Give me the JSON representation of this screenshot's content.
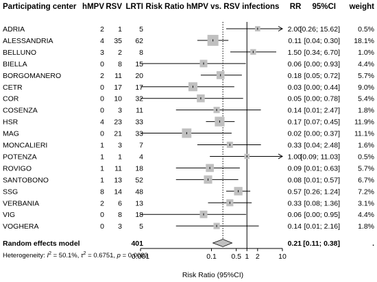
{
  "headers": {
    "center": "Participating center",
    "hmpv": "hMPV",
    "rsv": "RSV",
    "lrti": "LRTI",
    "plot": "Risk Ratio hMPV vs. RSV infections",
    "rr": "RR",
    "ci": "95%CI",
    "weight": "weight"
  },
  "rows": [
    {
      "center": "ADRIA",
      "hmpv": "2",
      "rsv": "1",
      "lrti": "5",
      "rr_text": "2.00",
      "ci_text": "[0.26; 15.62]",
      "weight_text": "0.5%",
      "rr": 2.0,
      "lo": 0.26,
      "hi": 15.62,
      "w": 0.5
    },
    {
      "center": "ALESSANDRIA",
      "hmpv": "4",
      "rsv": "35",
      "lrti": "62",
      "rr_text": "0.11",
      "ci_text": "[0.04; 0.30]",
      "weight_text": "18.1%",
      "rr": 0.11,
      "lo": 0.04,
      "hi": 0.3,
      "w": 18.1
    },
    {
      "center": "BELLUNO",
      "hmpv": "3",
      "rsv": "2",
      "lrti": "8",
      "rr_text": "1.50",
      "ci_text": "[0.34; 6.70]",
      "weight_text": "1.0%",
      "rr": 1.5,
      "lo": 0.34,
      "hi": 6.7,
      "w": 1.0
    },
    {
      "center": "BIELLA",
      "hmpv": "0",
      "rsv": "8",
      "lrti": "15",
      "rr_text": "0.06",
      "ci_text": "[0.00; 0.93]",
      "weight_text": "4.4%",
      "rr": 0.06,
      "lo": 0.0,
      "hi": 0.93,
      "w": 4.4
    },
    {
      "center": "BORGOMANERO",
      "hmpv": "2",
      "rsv": "11",
      "lrti": "20",
      "rr_text": "0.18",
      "ci_text": "[0.05; 0.72]",
      "weight_text": "5.7%",
      "rr": 0.18,
      "lo": 0.05,
      "hi": 0.72,
      "w": 5.7
    },
    {
      "center": "CETR",
      "hmpv": "0",
      "rsv": "17",
      "lrti": "17",
      "rr_text": "0.03",
      "ci_text": "[0.00; 0.44]",
      "weight_text": "9.0%",
      "rr": 0.03,
      "lo": 0.0,
      "hi": 0.44,
      "w": 9.0
    },
    {
      "center": "COR",
      "hmpv": "0",
      "rsv": "10",
      "lrti": "32",
      "rr_text": "0.05",
      "ci_text": "[0.00; 0.78]",
      "weight_text": "5.4%",
      "rr": 0.05,
      "lo": 0.0,
      "hi": 0.78,
      "w": 5.4
    },
    {
      "center": "COSENZA",
      "hmpv": "0",
      "rsv": "3",
      "lrti": "11",
      "rr_text": "0.14",
      "ci_text": "[0.01; 2.47]",
      "weight_text": "1.8%",
      "rr": 0.14,
      "lo": 0.01,
      "hi": 2.47,
      "w": 1.8
    },
    {
      "center": "HSR",
      "hmpv": "4",
      "rsv": "23",
      "lrti": "33",
      "rr_text": "0.17",
      "ci_text": "[0.07; 0.45]",
      "weight_text": "11.9%",
      "rr": 0.17,
      "lo": 0.07,
      "hi": 0.45,
      "w": 11.9
    },
    {
      "center": "MAG",
      "hmpv": "0",
      "rsv": "21",
      "lrti": "33",
      "rr_text": "0.02",
      "ci_text": "[0.00; 0.37]",
      "weight_text": "11.1%",
      "rr": 0.02,
      "lo": 0.0,
      "hi": 0.37,
      "w": 11.1
    },
    {
      "center": "MONCALIERI",
      "hmpv": "1",
      "rsv": "3",
      "lrti": "7",
      "rr_text": "0.33",
      "ci_text": "[0.04; 2.48]",
      "weight_text": "1.6%",
      "rr": 0.33,
      "lo": 0.04,
      "hi": 2.48,
      "w": 1.6
    },
    {
      "center": "POTENZA",
      "hmpv": "1",
      "rsv": "1",
      "lrti": "4",
      "rr_text": "1.00",
      "ci_text": "[0.09; 11.03]",
      "weight_text": "0.5%",
      "rr": 1.0,
      "lo": 0.09,
      "hi": 11.03,
      "w": 0.5
    },
    {
      "center": "ROVIGO",
      "hmpv": "1",
      "rsv": "11",
      "lrti": "18",
      "rr_text": "0.09",
      "ci_text": "[0.01; 0.63]",
      "weight_text": "5.7%",
      "rr": 0.09,
      "lo": 0.01,
      "hi": 0.63,
      "w": 5.7
    },
    {
      "center": "SANTOBONO",
      "hmpv": "1",
      "rsv": "13",
      "lrti": "52",
      "rr_text": "0.08",
      "ci_text": "[0.01; 0.57]",
      "weight_text": "6.7%",
      "rr": 0.08,
      "lo": 0.01,
      "hi": 0.57,
      "w": 6.7
    },
    {
      "center": "SSG",
      "hmpv": "8",
      "rsv": "14",
      "lrti": "48",
      "rr_text": "0.57",
      "ci_text": "[0.26; 1.24]",
      "weight_text": "7.2%",
      "rr": 0.57,
      "lo": 0.26,
      "hi": 1.24,
      "w": 7.2
    },
    {
      "center": "VERBANIA",
      "hmpv": "2",
      "rsv": "6",
      "lrti": "13",
      "rr_text": "0.33",
      "ci_text": "[0.08; 1.36]",
      "weight_text": "3.1%",
      "rr": 0.33,
      "lo": 0.08,
      "hi": 1.36,
      "w": 3.1
    },
    {
      "center": "VIG",
      "hmpv": "0",
      "rsv": "8",
      "lrti": "18",
      "rr_text": "0.06",
      "ci_text": "[0.00; 0.95]",
      "weight_text": "4.4%",
      "rr": 0.06,
      "lo": 0.0,
      "hi": 0.95,
      "w": 4.4
    },
    {
      "center": "VOGHERA",
      "hmpv": "0",
      "rsv": "3",
      "lrti": "5",
      "rr_text": "0.14",
      "ci_text": "[0.01; 2.16]",
      "weight_text": "1.8%",
      "rr": 0.14,
      "lo": 0.01,
      "hi": 2.16,
      "w": 1.8
    }
  ],
  "summary": {
    "label": "Random effects model",
    "lrti_total": "401",
    "rr_text": "0.21",
    "ci_text": "[0.11; 0.38]",
    "weight_text": ".",
    "rr": 0.21,
    "lo": 0.11,
    "hi": 0.38
  },
  "heterogeneity": {
    "prefix": "Heterogeneity: ",
    "i2_symbol": "I",
    "i2_value": " = 50.1%, ",
    "tau_symbol": "τ",
    "tau_value": " = 0.6751, ",
    "p_symbol": "p",
    "p_value": " = 0.0083"
  },
  "chart_data": {
    "type": "forest",
    "x_scale": "log",
    "xlim": [
      0.001,
      10
    ],
    "ticks": [
      "0.001",
      "0.1",
      "0.5",
      "1",
      "2",
      "10"
    ],
    "tick_values": [
      0.001,
      0.1,
      0.5,
      1,
      2,
      10
    ],
    "xlabel": "Risk Ratio (95%CI)",
    "reference_line": 1,
    "summary_line": 0.21,
    "colors": {
      "box": "#c0c0c0",
      "diamond": "#c0c0c0",
      "line": "#000000"
    }
  }
}
